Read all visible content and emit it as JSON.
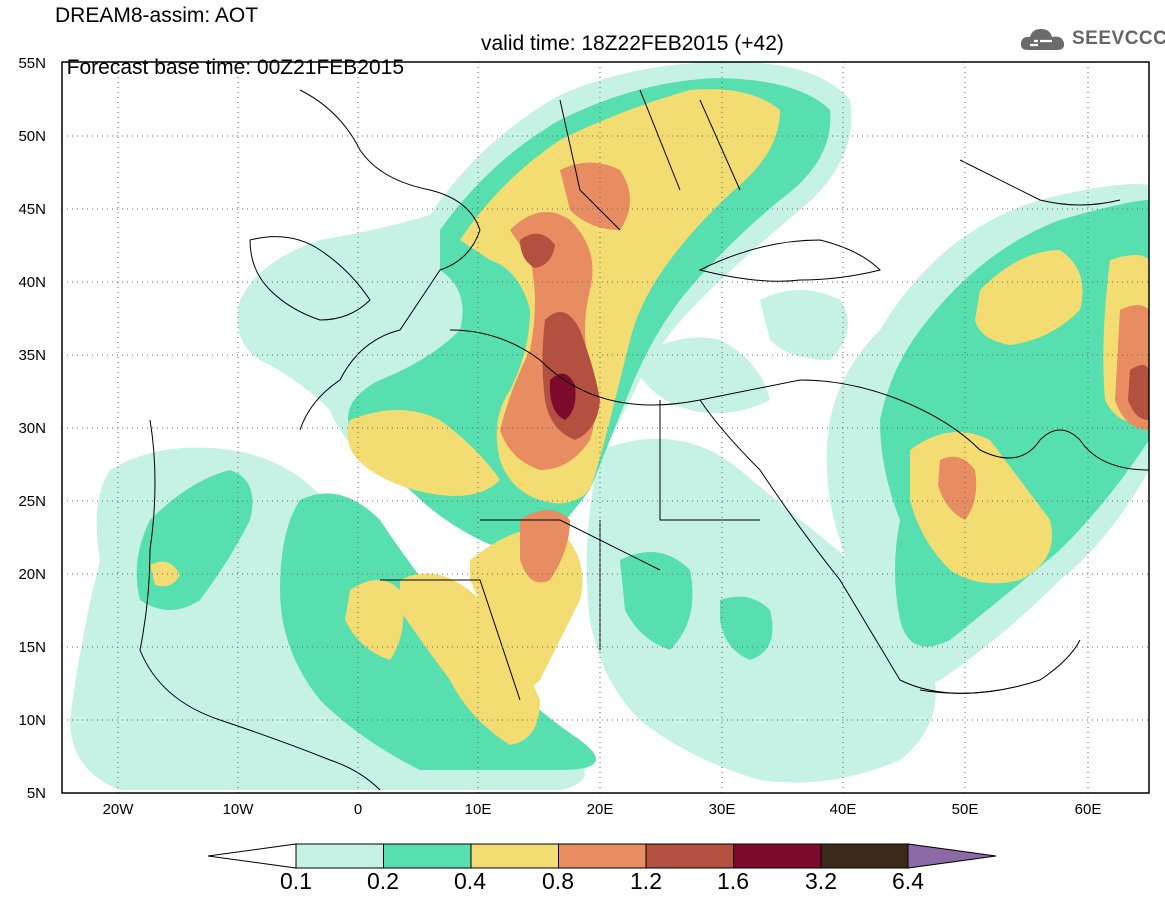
{
  "title": {
    "line1": "DREAM8-assim: AOT",
    "line2_base": "Forecast base time: 00Z21FEB2015",
    "line2_valid": "valid time: 18Z22FEB2015 (+42)"
  },
  "logo": {
    "text": "SEEVCCC",
    "icon": "cloud-icon",
    "color": "#6b6b6b"
  },
  "map": {
    "lon_ticks": [
      "20W",
      "10W",
      "0",
      "10E",
      "20E",
      "30E",
      "40E",
      "50E",
      "60E"
    ],
    "lat_ticks": [
      "55N",
      "50N",
      "45N",
      "40N",
      "35N",
      "30N",
      "25N",
      "20N",
      "15N",
      "10N",
      "5N"
    ],
    "lon_range": [
      -25,
      65
    ],
    "lat_range": [
      5,
      55
    ],
    "grid": "dotted"
  },
  "colorbar": {
    "labels": [
      "0.1",
      "0.2",
      "0.4",
      "0.8",
      "1.2",
      "1.6",
      "3.2",
      "6.4"
    ],
    "colors": [
      "#c6f2e6",
      "#57dfb0",
      "#f3dd72",
      "#e88c61",
      "#b4503f",
      "#7c0a2a",
      "#3b2a1a",
      "#8c6aa6"
    ]
  }
}
